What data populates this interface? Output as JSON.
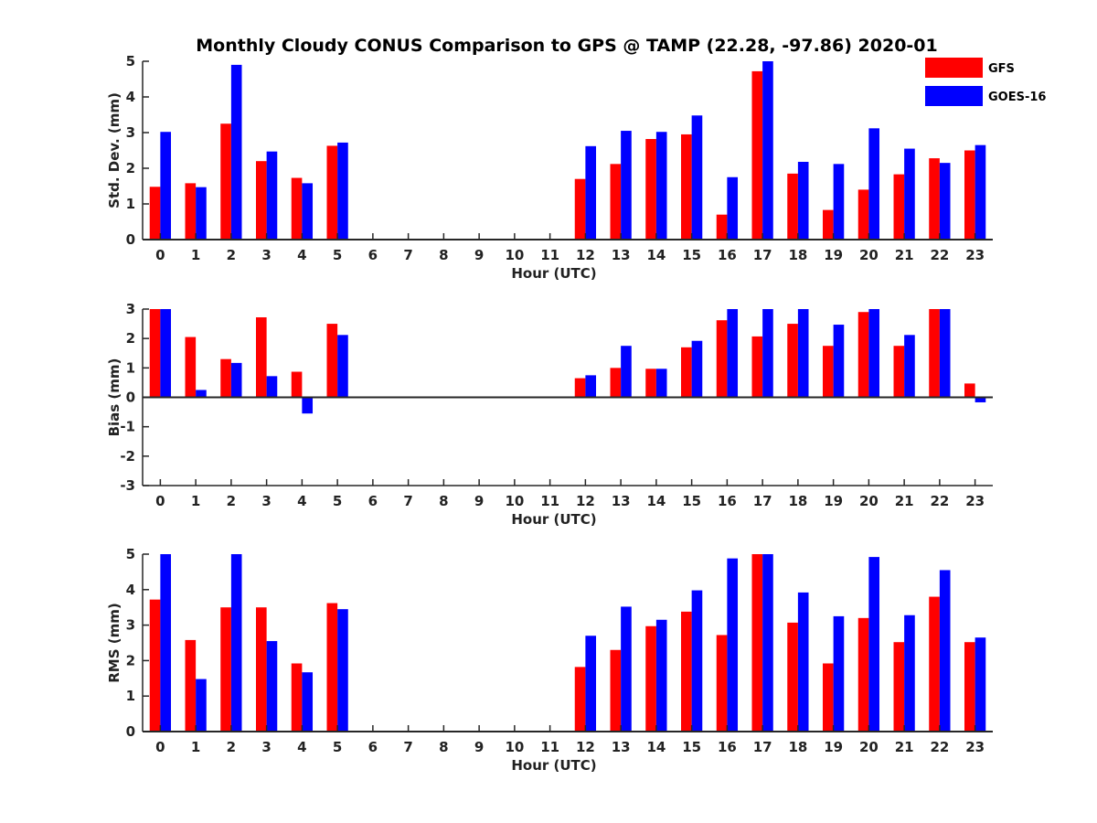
{
  "title": "Monthly Cloudy CONUS Comparison to GPS @ TAMP (22.28, -97.86) 2020-01",
  "colors": {
    "GFS": "#ff0000",
    "GOES-16": "#0000ff"
  },
  "legend": {
    "placement": "top-right",
    "items": [
      "GFS",
      "GOES-16"
    ]
  },
  "chart_data": [
    {
      "type": "bar",
      "xlabel": "Hour (UTC)",
      "ylabel": "Std. Dev. (mm)",
      "ylim": [
        0,
        5
      ],
      "yticks": [
        "0",
        "1",
        "2",
        "3",
        "4",
        "5"
      ],
      "categories": [
        "0",
        "1",
        "2",
        "3",
        "4",
        "5",
        "6",
        "7",
        "8",
        "9",
        "10",
        "11",
        "12",
        "13",
        "14",
        "15",
        "16",
        "17",
        "18",
        "19",
        "20",
        "21",
        "22",
        "23"
      ],
      "series": [
        {
          "name": "GFS",
          "values": [
            1.48,
            1.58,
            3.25,
            2.2,
            1.73,
            2.63,
            null,
            null,
            null,
            null,
            null,
            null,
            1.7,
            2.12,
            2.82,
            2.95,
            0.7,
            4.72,
            1.85,
            0.83,
            1.4,
            1.83,
            2.28,
            2.5
          ]
        },
        {
          "name": "GOES-16",
          "values": [
            3.02,
            1.47,
            4.9,
            2.47,
            1.58,
            2.72,
            null,
            null,
            null,
            null,
            null,
            null,
            2.62,
            3.05,
            3.02,
            3.48,
            1.75,
            5.0,
            2.18,
            2.12,
            3.12,
            2.55,
            2.15,
            2.65
          ]
        }
      ]
    },
    {
      "type": "bar",
      "xlabel": "Hour (UTC)",
      "ylabel": "Bias (mm)",
      "ylim": [
        -3,
        3
      ],
      "yticks": [
        "-3",
        "-2",
        "-1",
        "0",
        "1",
        "2",
        "3"
      ],
      "categories": [
        "0",
        "1",
        "2",
        "3",
        "4",
        "5",
        "6",
        "7",
        "8",
        "9",
        "10",
        "11",
        "12",
        "13",
        "14",
        "15",
        "16",
        "17",
        "18",
        "19",
        "20",
        "21",
        "22",
        "23"
      ],
      "series": [
        {
          "name": "GFS",
          "values": [
            3.0,
            2.05,
            1.3,
            2.72,
            0.87,
            2.5,
            null,
            null,
            null,
            null,
            null,
            null,
            0.65,
            1.0,
            0.97,
            1.7,
            2.62,
            2.07,
            2.5,
            1.75,
            2.9,
            1.75,
            3.0,
            0.47
          ]
        },
        {
          "name": "GOES-16",
          "values": [
            3.0,
            0.25,
            1.17,
            0.72,
            -0.55,
            2.12,
            null,
            null,
            null,
            null,
            null,
            null,
            0.75,
            1.75,
            0.97,
            1.92,
            3.0,
            3.0,
            3.0,
            2.47,
            3.0,
            2.12,
            3.0,
            -0.17
          ]
        }
      ]
    },
    {
      "type": "bar",
      "xlabel": "Hour (UTC)",
      "ylabel": "RMS (mm)",
      "ylim": [
        0,
        5
      ],
      "yticks": [
        "0",
        "1",
        "2",
        "3",
        "4",
        "5"
      ],
      "categories": [
        "0",
        "1",
        "2",
        "3",
        "4",
        "5",
        "6",
        "7",
        "8",
        "9",
        "10",
        "11",
        "12",
        "13",
        "14",
        "15",
        "16",
        "17",
        "18",
        "19",
        "20",
        "21",
        "22",
        "23"
      ],
      "series": [
        {
          "name": "GFS",
          "values": [
            3.72,
            2.58,
            3.5,
            3.5,
            1.92,
            3.62,
            null,
            null,
            null,
            null,
            null,
            null,
            1.82,
            2.3,
            2.97,
            3.38,
            2.72,
            5.0,
            3.07,
            1.92,
            3.2,
            2.52,
            3.8,
            2.52
          ]
        },
        {
          "name": "GOES-16",
          "values": [
            5.0,
            1.48,
            5.0,
            2.55,
            1.67,
            3.45,
            null,
            null,
            null,
            null,
            null,
            null,
            2.7,
            3.52,
            3.15,
            3.98,
            4.88,
            5.0,
            3.92,
            3.25,
            4.92,
            3.28,
            4.55,
            2.65
          ]
        }
      ]
    }
  ]
}
